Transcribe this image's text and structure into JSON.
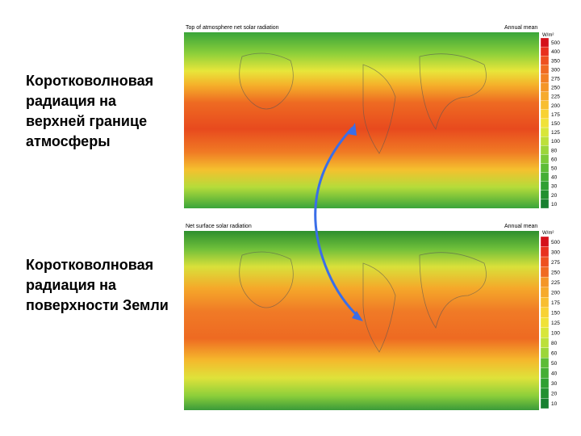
{
  "labels": [
    "Коротковолновая радиация на верхней границе атмосферы",
    "Коротковолновая радиация на поверхности Земли"
  ],
  "maps": [
    {
      "title": "Top of atmosphere net solar radiation",
      "subtitle": "Annual mean",
      "unit": "W/m²",
      "scale": [
        "500",
        "400",
        "350",
        "300",
        "275",
        "250",
        "225",
        "200",
        "175",
        "150",
        "125",
        "100",
        "80",
        "60",
        "50",
        "40",
        "30",
        "20",
        "10"
      ]
    },
    {
      "title": "Net surface solar radiation",
      "subtitle": "Annual mean",
      "unit": "W/m²",
      "scale": [
        "500",
        "300",
        "275",
        "250",
        "225",
        "200",
        "175",
        "150",
        "125",
        "100",
        "80",
        "60",
        "50",
        "40",
        "30",
        "20",
        "10"
      ]
    }
  ]
}
